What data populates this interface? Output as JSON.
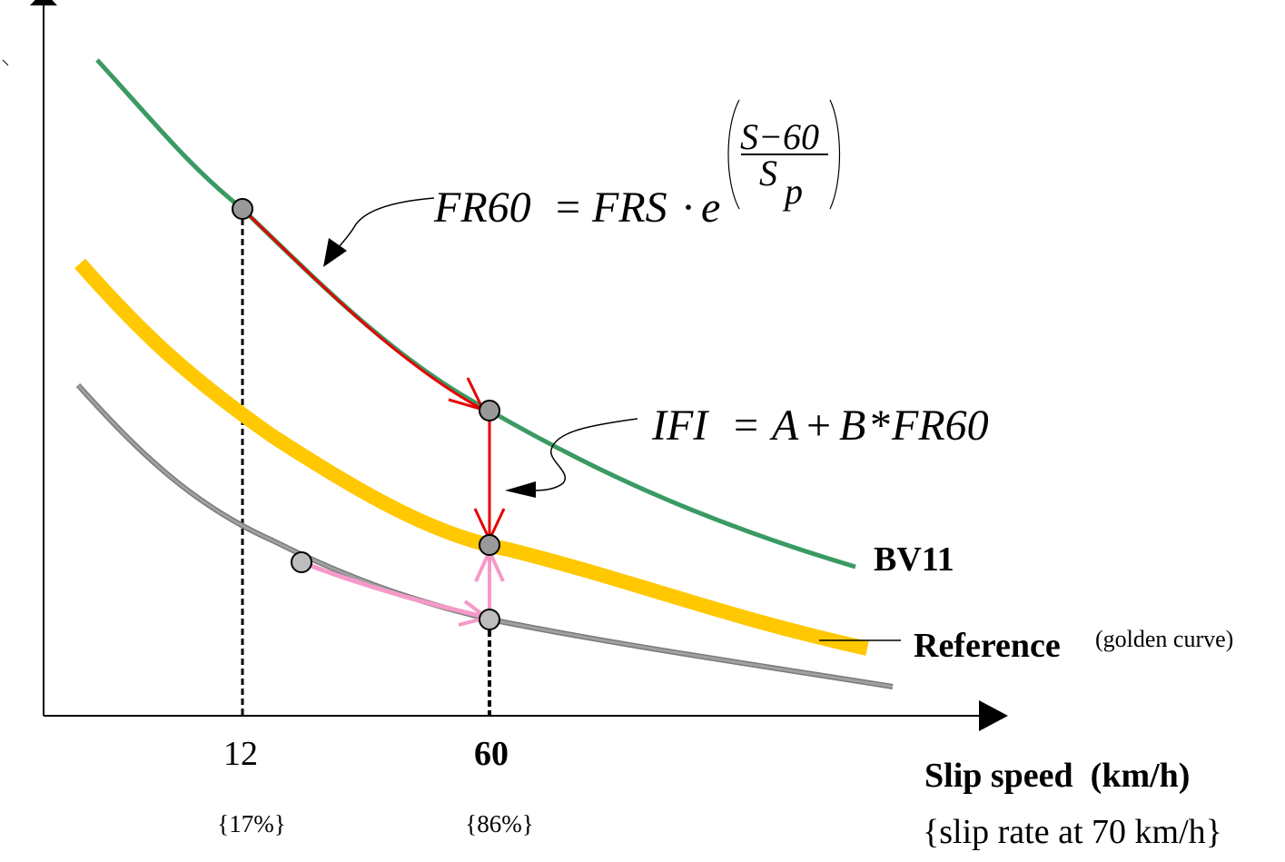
{
  "formulas": {
    "fr60": {
      "lhs": "FR60",
      "eq": "=",
      "rhs": "FRS",
      "dot": "·",
      "base": "e",
      "exp_numerator": "S−60",
      "exp_denominator": "S",
      "exp_denominator_sub": "p"
    },
    "ifi": {
      "lhs": "IFI",
      "eq": "=",
      "a": "A",
      "plus": "+",
      "b": "B",
      "times": "*",
      "fr": "FR60"
    }
  },
  "curves": {
    "bv11": {
      "label": "BV11",
      "color": "#3a9a64"
    },
    "reference": {
      "label": "Reference",
      "note": "(golden curve)",
      "color": "#ffc800"
    },
    "measured": {
      "color": "#a0a0a0"
    }
  },
  "arrows": {
    "transform_color": "#e60000",
    "calibration_color": "#f59ac8"
  },
  "x_axis": {
    "ticks": [
      {
        "value": "12",
        "note": "{17%}"
      },
      {
        "value": "60",
        "note": "{86%}"
      }
    ],
    "label": "Slip speed  (km/h)",
    "sublabel": "{slip rate at 70 km/h}"
  }
}
